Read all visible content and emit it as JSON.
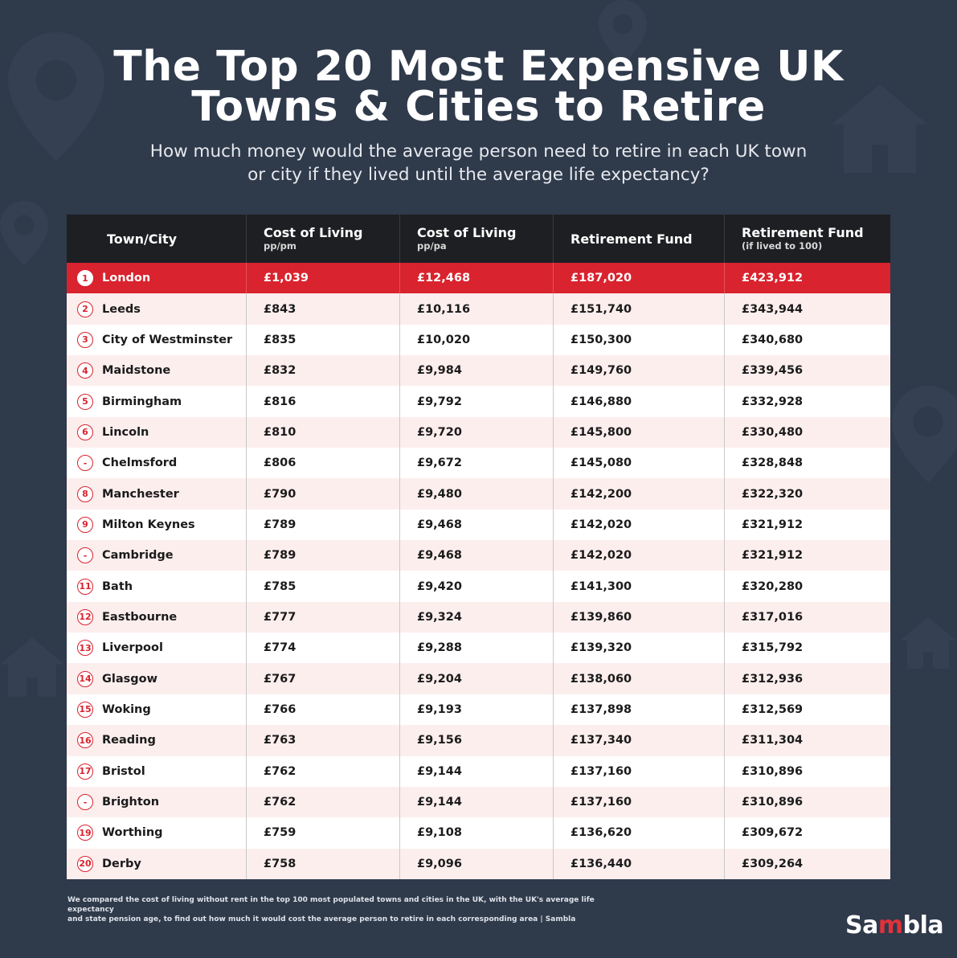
{
  "title": {
    "line1": "The Top 20 Most Expensive UK",
    "line2": "Towns & Cities to Retire"
  },
  "subtitle": {
    "line1": "How much money would the average person need to retire in each UK town",
    "line2": "or city if they lived until the average life expectancy?"
  },
  "colors": {
    "background": "#2f3a4b",
    "header": "#1e1f22",
    "highlight": "#d9232e",
    "row_alt": "#fdeeee"
  },
  "table": {
    "headers": [
      {
        "main": "Town/City",
        "sub": ""
      },
      {
        "main": "Cost of Living",
        "sub": "pp/pm"
      },
      {
        "main": "Cost of Living",
        "sub": "pp/pa"
      },
      {
        "main": "Retirement Fund",
        "sub": ""
      },
      {
        "main": "Retirement Fund",
        "sub": "(if lived to 100)"
      }
    ],
    "rows": [
      {
        "rank": "1",
        "city": "London",
        "ppm": "£1,039",
        "ppa": "£12,468",
        "fund": "£187,020",
        "fund100": "£423,912"
      },
      {
        "rank": "2",
        "city": "Leeds",
        "ppm": "£843",
        "ppa": "£10,116",
        "fund": "£151,740",
        "fund100": "£343,944"
      },
      {
        "rank": "3",
        "city": "City of Westminster",
        "ppm": "£835",
        "ppa": "£10,020",
        "fund": "£150,300",
        "fund100": "£340,680"
      },
      {
        "rank": "4",
        "city": "Maidstone",
        "ppm": "£832",
        "ppa": "£9,984",
        "fund": "£149,760",
        "fund100": "£339,456"
      },
      {
        "rank": "5",
        "city": "Birmingham",
        "ppm": "£816",
        "ppa": "£9,792",
        "fund": "£146,880",
        "fund100": "£332,928"
      },
      {
        "rank": "6",
        "city": "Lincoln",
        "ppm": "£810",
        "ppa": "£9,720",
        "fund": "£145,800",
        "fund100": "£330,480"
      },
      {
        "rank": "-",
        "city": "Chelmsford",
        "ppm": "£806",
        "ppa": "£9,672",
        "fund": "£145,080",
        "fund100": "£328,848"
      },
      {
        "rank": "8",
        "city": "Manchester",
        "ppm": "£790",
        "ppa": "£9,480",
        "fund": "£142,200",
        "fund100": "£322,320"
      },
      {
        "rank": "9",
        "city": "Milton Keynes",
        "ppm": "£789",
        "ppa": "£9,468",
        "fund": "£142,020",
        "fund100": "£321,912"
      },
      {
        "rank": "-",
        "city": "Cambridge",
        "ppm": "£789",
        "ppa": "£9,468",
        "fund": "£142,020",
        "fund100": "£321,912"
      },
      {
        "rank": "11",
        "city": "Bath",
        "ppm": "£785",
        "ppa": "£9,420",
        "fund": "£141,300",
        "fund100": "£320,280"
      },
      {
        "rank": "12",
        "city": "Eastbourne",
        "ppm": "£777",
        "ppa": "£9,324",
        "fund": "£139,860",
        "fund100": "£317,016"
      },
      {
        "rank": "13",
        "city": "Liverpool",
        "ppm": "£774",
        "ppa": "£9,288",
        "fund": "£139,320",
        "fund100": "£315,792"
      },
      {
        "rank": "14",
        "city": "Glasgow",
        "ppm": "£767",
        "ppa": "£9,204",
        "fund": "£138,060",
        "fund100": "£312,936"
      },
      {
        "rank": "15",
        "city": "Woking",
        "ppm": "£766",
        "ppa": "£9,193",
        "fund": "£137,898",
        "fund100": "£312,569"
      },
      {
        "rank": "16",
        "city": "Reading",
        "ppm": "£763",
        "ppa": "£9,156",
        "fund": "£137,340",
        "fund100": "£311,304"
      },
      {
        "rank": "17",
        "city": "Bristol",
        "ppm": "£762",
        "ppa": "£9,144",
        "fund": "£137,160",
        "fund100": "£310,896"
      },
      {
        "rank": "-",
        "city": "Brighton",
        "ppm": "£762",
        "ppa": "£9,144",
        "fund": "£137,160",
        "fund100": "£310,896"
      },
      {
        "rank": "19",
        "city": "Worthing",
        "ppm": "£759",
        "ppa": "£9,108",
        "fund": "£136,620",
        "fund100": "£309,672"
      },
      {
        "rank": "20",
        "city": "Derby",
        "ppm": "£758",
        "ppa": "£9,096",
        "fund": "£136,440",
        "fund100": "£309,264"
      }
    ]
  },
  "footnote": {
    "line1": "We compared the cost of living without rent in the top 100 most populated towns and cities in the UK, with the UK's average life expectancy",
    "line2": "and state pension age, to find out how much it would cost the average person to retire in each corresponding area | Sambla"
  },
  "logo": {
    "part1": "Sa",
    "part2": "m",
    "part3": "bla"
  },
  "icons": [
    "map-pin-icon",
    "house-icon"
  ]
}
